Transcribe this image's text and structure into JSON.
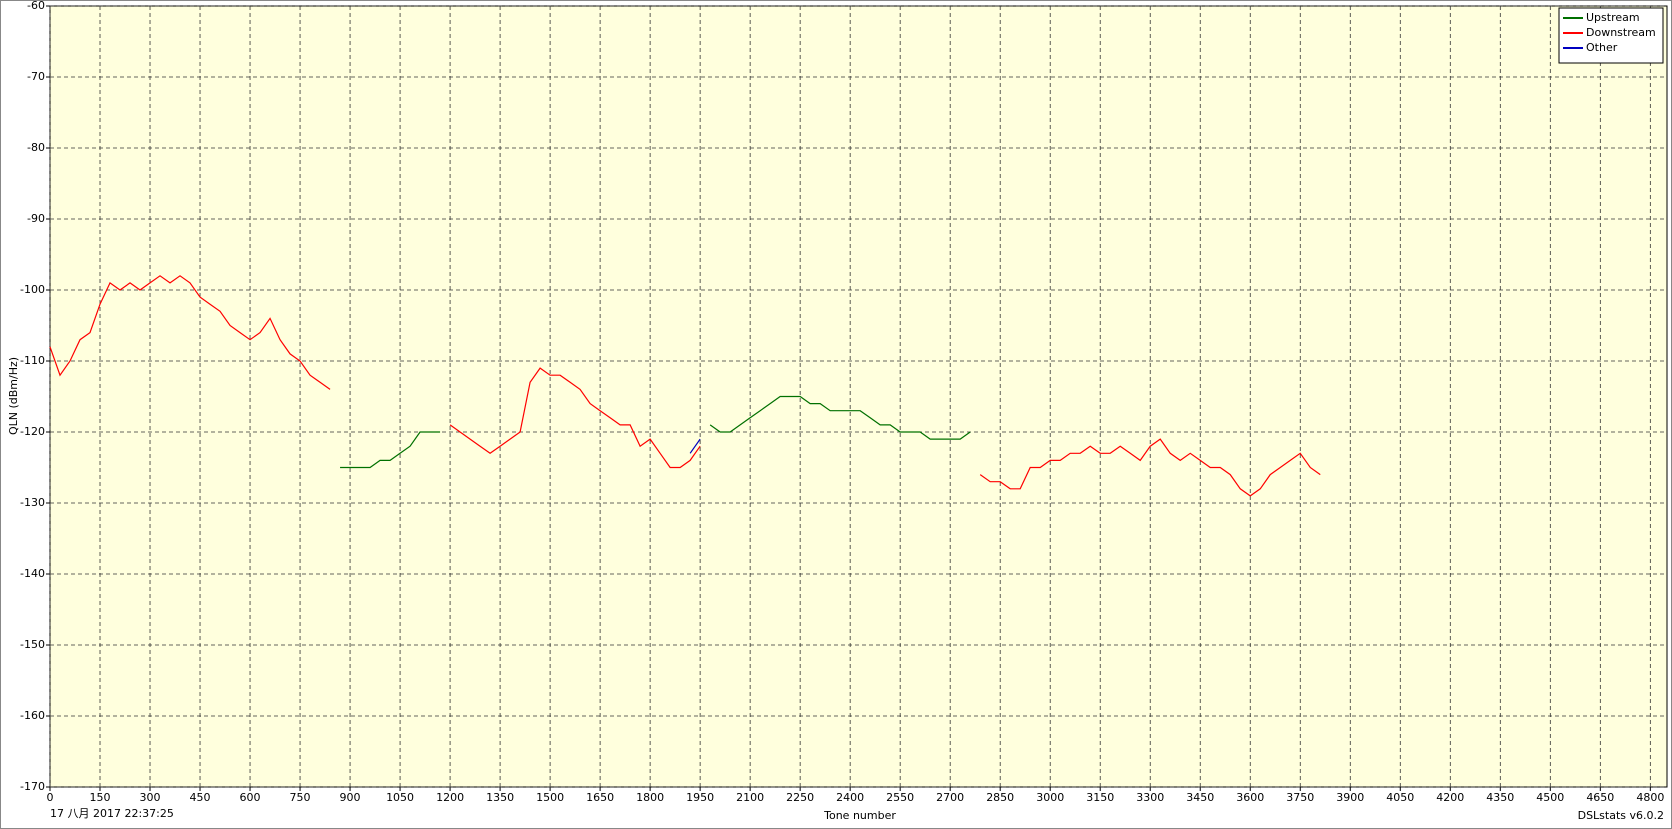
{
  "chart_data": {
    "type": "line",
    "xlabel": "Tone number",
    "ylabel": "QLN (dBm/Hz)",
    "footer_left": "17 八月 2017 22:37:25",
    "footer_right": "DSLstats v6.0.2",
    "xlim": [
      0,
      4850
    ],
    "ylim": [
      -170,
      -60
    ],
    "xticks": [
      0,
      150,
      300,
      450,
      600,
      750,
      900,
      1050,
      1200,
      1350,
      1500,
      1650,
      1800,
      1950,
      2100,
      2250,
      2400,
      2550,
      2700,
      2850,
      3000,
      3150,
      3300,
      3450,
      3600,
      3750,
      3900,
      4050,
      4200,
      4350,
      4500,
      4650,
      4800
    ],
    "yticks": [
      -170,
      -160,
      -150,
      -140,
      -130,
      -120,
      -110,
      -100,
      -90,
      -80,
      -70,
      -60
    ],
    "grid": true,
    "legend": "upper right",
    "x": [
      0,
      30,
      60,
      90,
      120,
      150,
      180,
      210,
      240,
      270,
      300,
      330,
      360,
      390,
      420,
      450,
      480,
      510,
      540,
      570,
      600,
      630,
      660,
      690,
      720,
      750,
      780,
      810,
      840,
      870,
      900,
      930,
      960,
      990,
      1020,
      1050,
      1080,
      1110,
      1140,
      1170,
      1200,
      1230,
      1260,
      1290,
      1320,
      1350,
      1380,
      1410,
      1440,
      1470,
      1500,
      1530,
      1560,
      1590,
      1620,
      1650,
      1680,
      1710,
      1740,
      1770,
      1800,
      1830,
      1860,
      1890,
      1920,
      1950,
      1980,
      2010,
      2040,
      2070,
      2100,
      2130,
      2160,
      2190,
      2220,
      2250,
      2280,
      2310,
      2340,
      2370,
      2400,
      2430,
      2460,
      2490,
      2520,
      2550,
      2580,
      2610,
      2640,
      2670,
      2700,
      2730,
      2760,
      2790,
      2820,
      2850,
      2880,
      2910,
      2940,
      2970,
      3000,
      3030,
      3060,
      3090,
      3120,
      3150,
      3180,
      3210,
      3240,
      3270,
      3300,
      3330,
      3360,
      3390,
      3420,
      3450,
      3480,
      3510,
      3540,
      3570,
      3600,
      3630,
      3660,
      3690,
      3720,
      3750,
      3780,
      3810
    ],
    "series": [
      {
        "name": "Upstream",
        "color": "#007000",
        "values": [
          null,
          null,
          null,
          null,
          null,
          null,
          null,
          null,
          null,
          null,
          null,
          null,
          null,
          null,
          null,
          null,
          null,
          null,
          null,
          null,
          null,
          null,
          null,
          null,
          null,
          null,
          null,
          null,
          null,
          -125,
          -125,
          -125,
          -125,
          -124,
          -124,
          -123,
          -122,
          -120,
          -120,
          -120,
          null,
          null,
          null,
          null,
          null,
          null,
          null,
          null,
          null,
          null,
          null,
          null,
          null,
          null,
          null,
          null,
          null,
          null,
          null,
          null,
          null,
          null,
          null,
          null,
          null,
          null,
          -119,
          -120,
          -120,
          -119,
          -118,
          -117,
          -116,
          -115,
          -115,
          -115,
          -116,
          -116,
          -117,
          -117,
          -117,
          -117,
          -118,
          -119,
          -119,
          -120,
          -120,
          -120,
          -121,
          -121,
          -121,
          -121,
          -120,
          null,
          null,
          null,
          null,
          null,
          null,
          null,
          null,
          null,
          null,
          null,
          null,
          null,
          null,
          null,
          null,
          null,
          null,
          null,
          null,
          null,
          null,
          null,
          null,
          null,
          null,
          null,
          null,
          null,
          null,
          null,
          null,
          null,
          null,
          null
        ]
      },
      {
        "name": "Downstream",
        "color": "#ff0000",
        "values": [
          -108,
          -112,
          -110,
          -107,
          -106,
          -102,
          -99,
          -100,
          -99,
          -100,
          -99,
          -98,
          -99,
          -98,
          -99,
          -101,
          -102,
          -103,
          -105,
          -106,
          -107,
          -106,
          -104,
          -107,
          -109,
          -110,
          -112,
          -113,
          -114,
          null,
          null,
          null,
          null,
          null,
          null,
          null,
          null,
          null,
          null,
          null,
          -119,
          -120,
          -121,
          -122,
          -123,
          -122,
          -121,
          -120,
          -113,
          -111,
          -112,
          -112,
          -113,
          -114,
          -116,
          -117,
          -118,
          -119,
          -119,
          -122,
          -121,
          -123,
          -125,
          -125,
          -124,
          -122,
          null,
          null,
          null,
          null,
          null,
          null,
          null,
          null,
          null,
          null,
          null,
          null,
          null,
          null,
          null,
          null,
          null,
          null,
          null,
          null,
          null,
          null,
          null,
          null,
          null,
          null,
          null,
          -126,
          -127,
          -127,
          -128,
          -128,
          -125,
          -125,
          -124,
          -124,
          -123,
          -123,
          -122,
          -123,
          -123,
          -122,
          -123,
          -124,
          -122,
          -121,
          -123,
          -124,
          -123,
          -124,
          -125,
          -125,
          -126,
          -128,
          -129,
          -128,
          -126,
          -125,
          -124,
          -123,
          -125,
          -126
        ]
      },
      {
        "name": "Other",
        "color": "#0000c0",
        "values": [
          null,
          null,
          null,
          null,
          null,
          null,
          null,
          null,
          null,
          null,
          null,
          null,
          null,
          null,
          null,
          null,
          null,
          null,
          null,
          null,
          null,
          null,
          null,
          null,
          null,
          null,
          null,
          null,
          null,
          null,
          null,
          null,
          null,
          null,
          null,
          null,
          null,
          null,
          null,
          null,
          null,
          null,
          null,
          null,
          null,
          null,
          null,
          null,
          null,
          null,
          null,
          null,
          null,
          null,
          null,
          null,
          null,
          null,
          null,
          null,
          null,
          null,
          null,
          null,
          -123,
          -121,
          null,
          null,
          null,
          null,
          null,
          null,
          null,
          null,
          null,
          null,
          null,
          null,
          null,
          null,
          null,
          null,
          null,
          null,
          null,
          null,
          null,
          null,
          null,
          null,
          null,
          null,
          null,
          null,
          null,
          null,
          null,
          null,
          null,
          null,
          null,
          null,
          null,
          null,
          null,
          null,
          null,
          null,
          null,
          null,
          null,
          null,
          null,
          null,
          null,
          null,
          null,
          null,
          null,
          null,
          null,
          null,
          null,
          null,
          null,
          null,
          null,
          null
        ]
      }
    ]
  }
}
